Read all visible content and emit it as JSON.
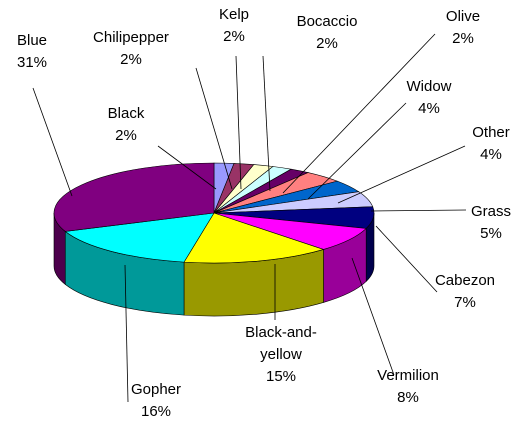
{
  "chart_data": {
    "type": "pie",
    "title": "",
    "legend": "none",
    "style": "3d-exploded-tilted",
    "slices": [
      {
        "label": "Black",
        "value": 2,
        "percent_label": "2%",
        "color": "#9999FF"
      },
      {
        "label": "Chilipepper",
        "value": 2,
        "percent_label": "2%",
        "color": "#993366"
      },
      {
        "label": "Kelp",
        "value": 2,
        "percent_label": "2%",
        "color": "#FFFFCC"
      },
      {
        "label": "Bocaccio",
        "value": 2,
        "percent_label": "2%",
        "color": "#CCFFFF"
      },
      {
        "label": "Olive",
        "value": 2,
        "percent_label": "2%",
        "color": "#660066"
      },
      {
        "label": "Widow",
        "value": 4,
        "percent_label": "4%",
        "color": "#FF8080"
      },
      {
        "label": "Other",
        "value": 4,
        "percent_label": "4%",
        "color": "#0066CC"
      },
      {
        "label": "Grass",
        "value": 5,
        "percent_label": "5%",
        "color": "#CCCCFF"
      },
      {
        "label": "Cabezon",
        "value": 7,
        "percent_label": "7%",
        "color": "#000080"
      },
      {
        "label": "Vermilion",
        "value": 8,
        "percent_label": "8%",
        "color": "#FF00FF"
      },
      {
        "label": "Black-and-yellow",
        "value": 15,
        "percent_label": "15%",
        "color": "#FFFF00"
      },
      {
        "label": "Gopher",
        "value": 16,
        "percent_label": "16%",
        "color": "#00FFFF"
      },
      {
        "label": "Blue",
        "value": 31,
        "percent_label": "31%",
        "color": "#800080"
      }
    ]
  }
}
